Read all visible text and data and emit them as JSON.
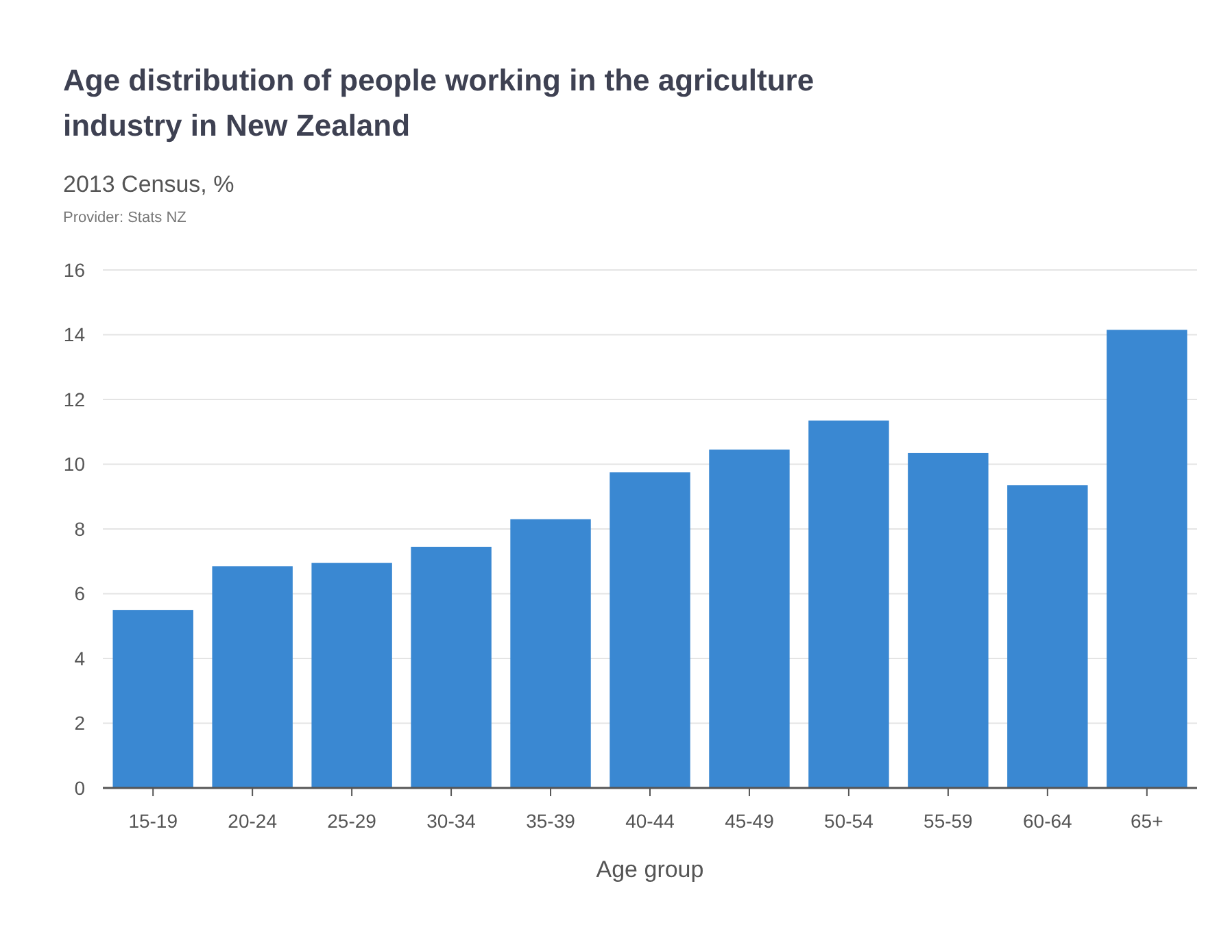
{
  "chart_data": {
    "type": "bar",
    "title": "Age distribution of people working in the agriculture industry in New Zealand",
    "subtitle": "2013 Census, %",
    "annotations": [
      "Provider: Stats NZ"
    ],
    "xlabel": "Age group",
    "categories": [
      "15-19",
      "20-24",
      "25-29",
      "30-34",
      "35-39",
      "40-44",
      "45-49",
      "50-54",
      "55-59",
      "60-64",
      "65+"
    ],
    "values": [
      5.5,
      6.85,
      6.95,
      7.45,
      8.3,
      9.75,
      10.45,
      11.35,
      10.35,
      9.35,
      14.15
    ],
    "color": "#3a88d2",
    "ylim": [
      0,
      16
    ],
    "yticks": [
      0,
      2,
      4,
      6,
      8,
      10,
      12,
      14,
      16
    ],
    "grid": "y"
  }
}
